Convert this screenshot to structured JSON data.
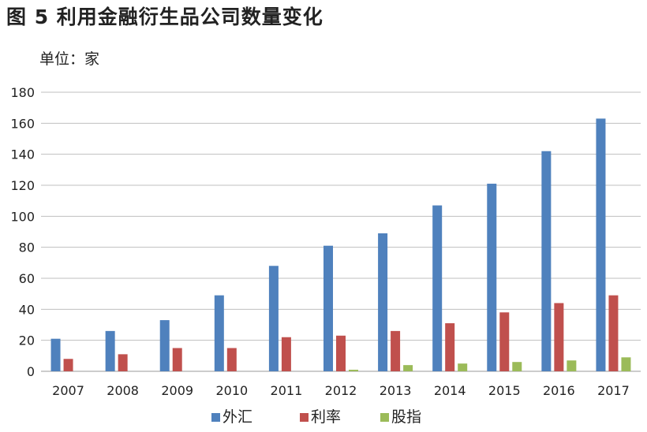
{
  "figure": {
    "title": "图 5 利用金融衍生品公司数量变化",
    "unit": "单位：家"
  },
  "chart_data": {
    "type": "bar",
    "title": "图 5 利用金融衍生品公司数量变化",
    "ylabel": "单位：家",
    "xlabel": "",
    "categories": [
      "2007",
      "2008",
      "2009",
      "2010",
      "2011",
      "2012",
      "2013",
      "2014",
      "2015",
      "2016",
      "2017"
    ],
    "series": [
      {
        "name": "外汇",
        "color": "#4F81BD",
        "values": [
          21,
          26,
          33,
          49,
          68,
          81,
          89,
          107,
          121,
          142,
          163
        ]
      },
      {
        "name": "利率",
        "color": "#C0504D",
        "values": [
          8,
          11,
          15,
          15,
          22,
          23,
          26,
          31,
          38,
          44,
          49
        ]
      },
      {
        "name": "股指",
        "color": "#9BBB59",
        "values": [
          0,
          0,
          0,
          0,
          0,
          1,
          4,
          5,
          6,
          7,
          9
        ]
      }
    ],
    "ylim": [
      0,
      180
    ],
    "yticks": [
      0,
      20,
      40,
      60,
      80,
      100,
      120,
      140,
      160,
      180
    ],
    "grid": true,
    "legend": "bottom-center"
  }
}
